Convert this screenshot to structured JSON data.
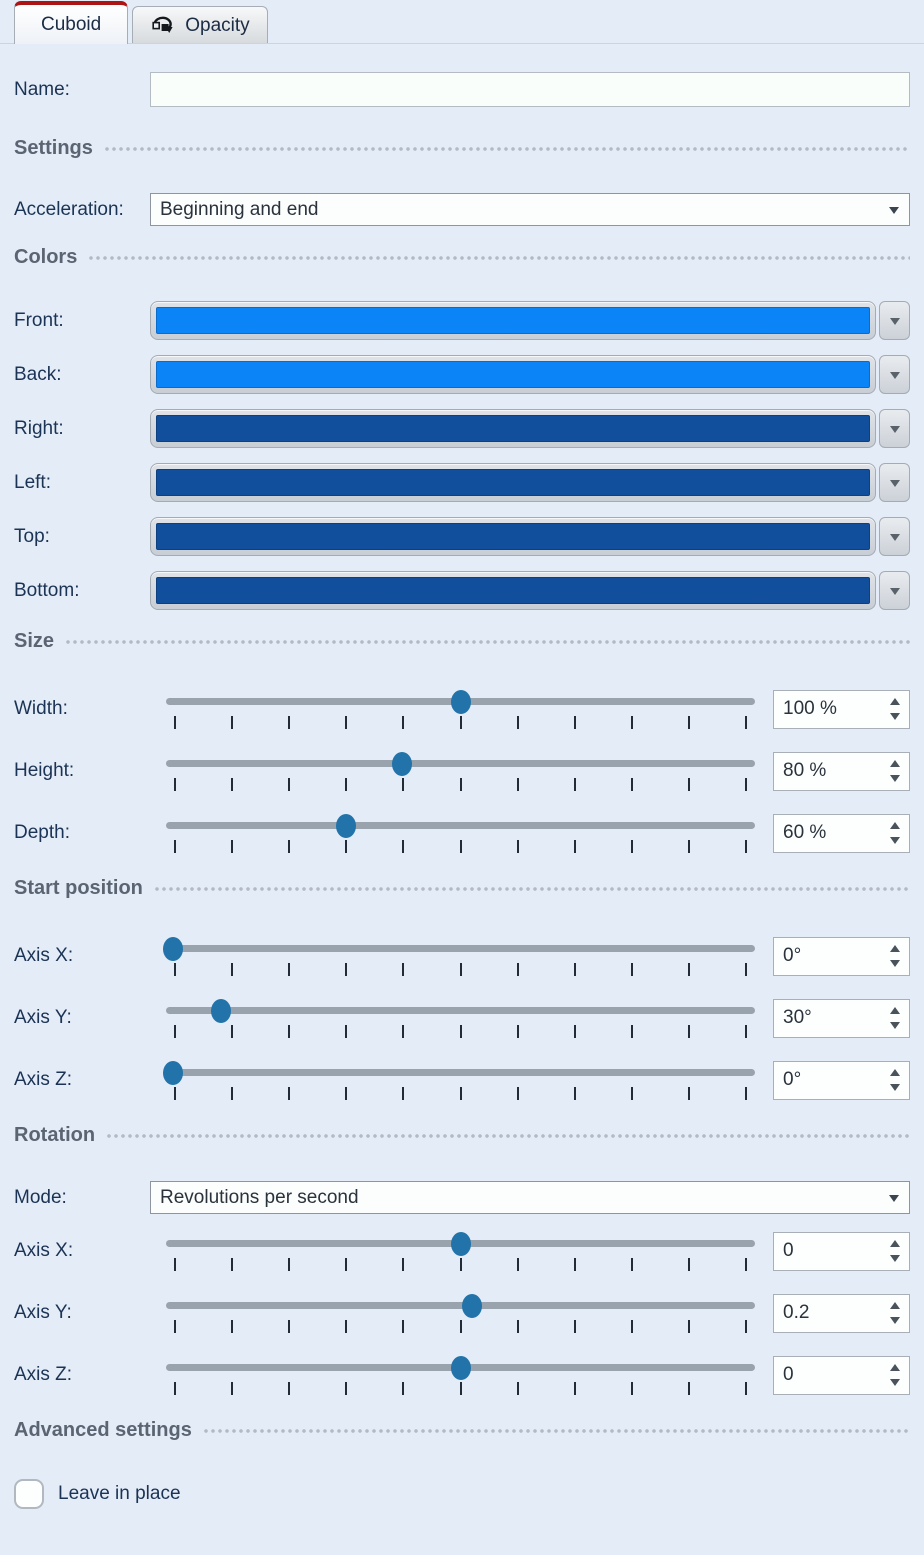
{
  "tabs": {
    "cuboid": {
      "label": "Cuboid",
      "active": true
    },
    "opacity": {
      "label": "Opacity",
      "active": false
    }
  },
  "name_row": {
    "label": "Name:",
    "value": ""
  },
  "settings": {
    "title": "Settings",
    "acceleration": {
      "label": "Acceleration:",
      "value": "Beginning and end"
    }
  },
  "colors": {
    "title": "Colors",
    "rows": [
      {
        "label": "Front:",
        "color": "#0b84f8"
      },
      {
        "label": "Back:",
        "color": "#0b84f8"
      },
      {
        "label": "Right:",
        "color": "#114f9d"
      },
      {
        "label": "Left:",
        "color": "#114f9d"
      },
      {
        "label": "Top:",
        "color": "#114f9d"
      },
      {
        "label": "Bottom:",
        "color": "#114f9d"
      }
    ]
  },
  "size": {
    "title": "Size",
    "rows": [
      {
        "label": "Width:",
        "value": "100 %",
        "percent": 50
      },
      {
        "label": "Height:",
        "value": "80 %",
        "percent": 40
      },
      {
        "label": "Depth:",
        "value": "60 %",
        "percent": 30.5
      }
    ]
  },
  "start_position": {
    "title": "Start position",
    "rows": [
      {
        "label": "Axis X:",
        "value": "0°",
        "percent": 1.2
      },
      {
        "label": "Axis Y:",
        "value": "30°",
        "percent": 9.3
      },
      {
        "label": "Axis Z:",
        "value": "0°",
        "percent": 1.2
      }
    ]
  },
  "rotation": {
    "title": "Rotation",
    "mode": {
      "label": "Mode:",
      "value": "Revolutions per second"
    },
    "rows": [
      {
        "label": "Axis X:",
        "value": "0",
        "percent": 50
      },
      {
        "label": "Axis Y:",
        "value": "0.2",
        "percent": 52
      },
      {
        "label": "Axis Z:",
        "value": "0",
        "percent": 50
      }
    ]
  },
  "advanced": {
    "title": "Advanced settings",
    "leave_in_place": {
      "label": "Leave in place",
      "checked": false
    }
  },
  "ui_colors": {
    "panel_background": "#e4ecf7",
    "active_tab_accent": "#ad1414",
    "front_back_blue": "#0b84f8",
    "side_blue": "#114f9d",
    "slider_handle": "#2173a9",
    "slider_track": "#99a3ae"
  }
}
